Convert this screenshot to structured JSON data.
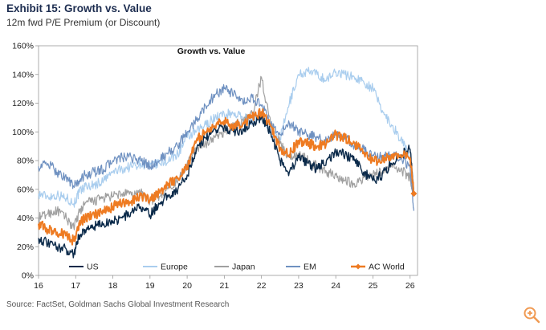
{
  "header": {
    "title": "Exhibit 15: Growth vs. Value",
    "subtitle": "12m fwd P/E Premium (or Discount)"
  },
  "footer": {
    "source": "Source: FactSet, Goldman Sachs Global Investment Research"
  },
  "icons": {
    "zoom": "zoom-in-icon"
  },
  "colors": {
    "US": "#0b2a4a",
    "Europe": "#a9cdee",
    "Japan": "#a0a0a0",
    "EM": "#6f91c1",
    "AC World": "#ee7b22",
    "zoom": "#f09a52"
  },
  "chart_data": {
    "type": "line",
    "title": "Growth vs. Value",
    "xlabel": "",
    "ylabel": "",
    "xlim": [
      16,
      26.2
    ],
    "ylim": [
      0,
      160
    ],
    "x_ticks": [
      16,
      17,
      18,
      19,
      20,
      21,
      22,
      23,
      24,
      25,
      26
    ],
    "x_tick_labels": [
      "16",
      "17",
      "18",
      "19",
      "20",
      "21",
      "22",
      "23",
      "24",
      "25",
      "26"
    ],
    "y_ticks": [
      0,
      20,
      40,
      60,
      80,
      100,
      120,
      140,
      160
    ],
    "y_tick_labels": [
      "0%",
      "20%",
      "40%",
      "60%",
      "80%",
      "100%",
      "120%",
      "140%",
      "160%"
    ],
    "legend_position": "bottom",
    "series": [
      {
        "name": "Europe",
        "x": [
          16,
          16.25,
          16.5,
          16.75,
          16.95,
          17.1,
          17.25,
          17.5,
          17.75,
          18,
          18.25,
          18.5,
          18.75,
          19,
          19.25,
          19.5,
          19.75,
          20,
          20.25,
          20.5,
          20.75,
          21,
          21.25,
          21.5,
          21.75,
          22,
          22.25,
          22.5,
          22.75,
          23,
          23.25,
          23.5,
          23.75,
          24,
          24.25,
          24.5,
          24.75,
          25,
          25.25,
          25.5,
          25.75,
          26,
          26.1
        ],
        "y": [
          57,
          55,
          56,
          54,
          50,
          58,
          62,
          63,
          66,
          72,
          74,
          76,
          78,
          76,
          78,
          80,
          85,
          96,
          100,
          105,
          110,
          112,
          113,
          110,
          108,
          112,
          100,
          95,
          120,
          140,
          142,
          140,
          136,
          142,
          140,
          138,
          135,
          130,
          115,
          105,
          95,
          82,
          60
        ]
      },
      {
        "name": "Japan",
        "x": [
          16,
          16.25,
          16.5,
          16.75,
          16.95,
          17.1,
          17.25,
          17.5,
          17.75,
          18,
          18.25,
          18.5,
          18.75,
          19,
          19.25,
          19.5,
          19.75,
          20,
          20.25,
          20.5,
          20.75,
          21,
          21.25,
          21.5,
          21.75,
          22,
          22.25,
          22.5,
          22.75,
          23,
          23.25,
          23.5,
          23.75,
          24,
          24.25,
          24.5,
          24.75,
          25,
          25.25,
          25.5,
          25.75,
          26,
          26.1
        ],
        "y": [
          40,
          43,
          45,
          40,
          33,
          44,
          50,
          52,
          54,
          55,
          57,
          56,
          58,
          52,
          55,
          62,
          66,
          78,
          88,
          92,
          96,
          100,
          104,
          108,
          112,
          138,
          105,
          92,
          82,
          85,
          80,
          76,
          72,
          70,
          66,
          64,
          68,
          70,
          72,
          76,
          74,
          68,
          58
        ]
      },
      {
        "name": "EM",
        "x": [
          16,
          16.25,
          16.5,
          16.75,
          16.95,
          17.1,
          17.25,
          17.5,
          17.75,
          18,
          18.25,
          18.5,
          18.75,
          19,
          19.25,
          19.5,
          19.75,
          20,
          20.25,
          20.5,
          20.75,
          21,
          21.25,
          21.5,
          21.75,
          22,
          22.25,
          22.5,
          22.75,
          23,
          23.25,
          23.5,
          23.75,
          24,
          24.25,
          24.5,
          24.75,
          25,
          25.25,
          25.5,
          25.75,
          26,
          26.1
        ],
        "y": [
          76,
          78,
          72,
          68,
          62,
          66,
          70,
          72,
          74,
          80,
          82,
          82,
          80,
          76,
          80,
          86,
          90,
          100,
          108,
          118,
          126,
          130,
          126,
          120,
          124,
          118,
          106,
          98,
          106,
          100,
          98,
          96,
          94,
          98,
          96,
          90,
          88,
          84,
          82,
          84,
          82,
          75,
          45
        ]
      },
      {
        "name": "US",
        "x": [
          16,
          16.25,
          16.5,
          16.75,
          16.95,
          17.1,
          17.25,
          17.5,
          17.75,
          18,
          18.25,
          18.5,
          18.75,
          19,
          19.25,
          19.5,
          19.75,
          20,
          20.25,
          20.5,
          20.75,
          21,
          21.25,
          21.5,
          21.75,
          22,
          22.25,
          22.5,
          22.75,
          23,
          23.25,
          23.5,
          23.75,
          24,
          24.25,
          24.5,
          24.75,
          25,
          25.25,
          25.5,
          25.75,
          26,
          26.1
        ],
        "y": [
          26,
          22,
          20,
          18,
          15,
          28,
          32,
          34,
          36,
          38,
          40,
          44,
          48,
          42,
          50,
          56,
          60,
          70,
          88,
          96,
          102,
          104,
          100,
          102,
          106,
          110,
          100,
          80,
          72,
          82,
          78,
          74,
          80,
          86,
          84,
          80,
          72,
          66,
          70,
          78,
          84,
          88,
          58
        ]
      },
      {
        "name": "AC World",
        "x": [
          16,
          16.25,
          16.5,
          16.75,
          16.95,
          17.1,
          17.25,
          17.5,
          17.75,
          18,
          18.25,
          18.5,
          18.75,
          19,
          19.25,
          19.5,
          19.75,
          20,
          20.25,
          20.5,
          20.75,
          21,
          21.25,
          21.5,
          21.75,
          22,
          22.25,
          22.5,
          22.75,
          23,
          23.25,
          23.5,
          23.75,
          24,
          24.25,
          24.5,
          24.75,
          25,
          25.25,
          25.5,
          25.75,
          26,
          26.1
        ],
        "y": [
          36,
          32,
          30,
          28,
          24,
          36,
          40,
          42,
          44,
          48,
          50,
          52,
          56,
          52,
          58,
          64,
          68,
          76,
          94,
          100,
          104,
          108,
          104,
          106,
          110,
          114,
          104,
          88,
          84,
          94,
          92,
          90,
          92,
          98,
          96,
          92,
          86,
          80,
          80,
          84,
          84,
          82,
          57
        ]
      }
    ],
    "legend": [
      "US",
      "Europe",
      "Japan",
      "EM",
      "AC World"
    ]
  }
}
